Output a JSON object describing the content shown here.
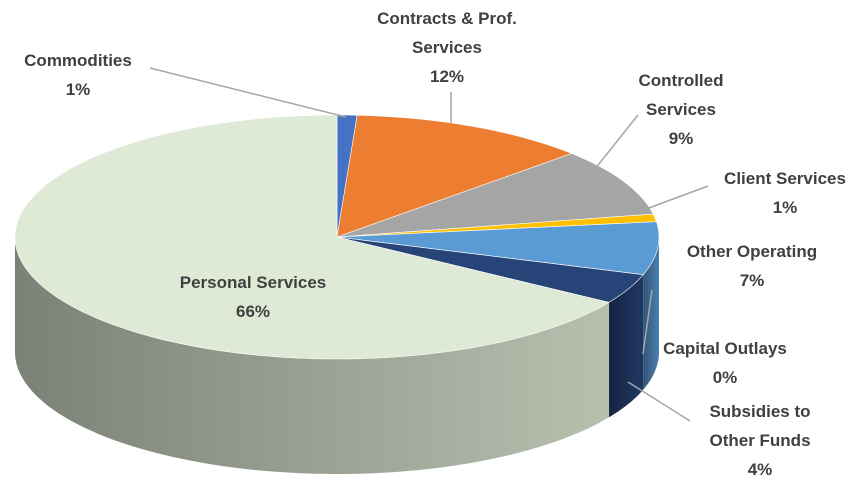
{
  "chart_data": {
    "type": "pie",
    "categories": [
      "Commodities",
      "Contracts & Prof. Services",
      "Controlled Services",
      "Client Services",
      "Other Operating",
      "Capital Outlays",
      "Subsidies to Other Funds",
      "Personal Services"
    ],
    "values": [
      1,
      12,
      9,
      1,
      7,
      0,
      4,
      66
    ],
    "value_labels": [
      "1%",
      "12%",
      "9%",
      "1%",
      "7%",
      "0%",
      "4%",
      "66%"
    ],
    "colors": [
      "#4472c4",
      "#ed7d31",
      "#a5a5a5",
      "#ffc000",
      "#5b9bd5",
      "#70ad47",
      "#264478",
      "#dfead6"
    ]
  }
}
